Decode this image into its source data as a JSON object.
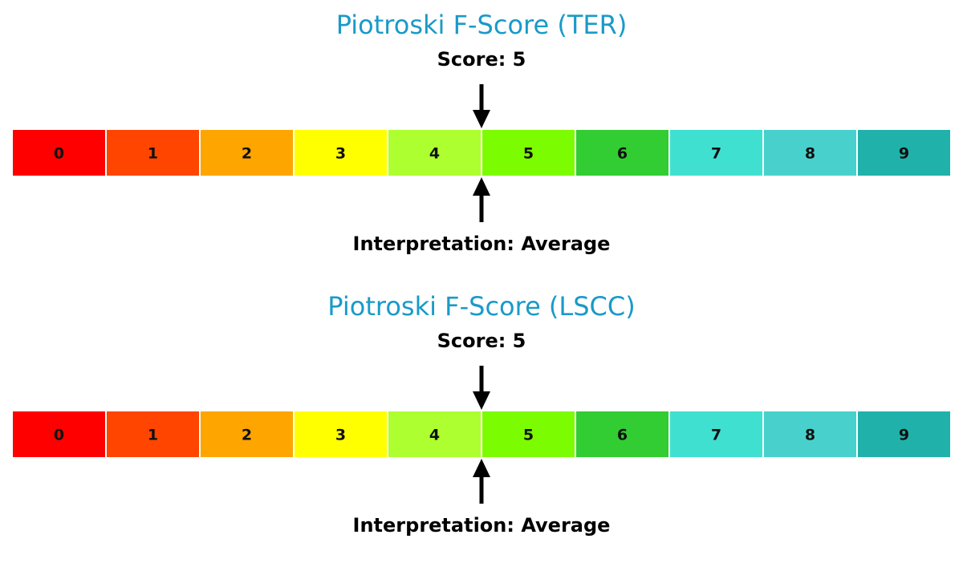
{
  "chart_data": [
    {
      "type": "bar",
      "title": "Piotroski F-Score (TER)",
      "score_label": "Score: 5",
      "interpretation_label": "Interpretation: Average",
      "categories": [
        "0",
        "1",
        "2",
        "3",
        "4",
        "5",
        "6",
        "7",
        "8",
        "9"
      ],
      "score": 5,
      "arrow_position": 5
    },
    {
      "type": "bar",
      "title": "Piotroski F-Score (LSCC)",
      "score_label": "Score: 5",
      "interpretation_label": "Interpretation: Average",
      "categories": [
        "0",
        "1",
        "2",
        "3",
        "4",
        "5",
        "6",
        "7",
        "8",
        "9"
      ],
      "score": 5,
      "arrow_position": 5
    }
  ],
  "colors": {
    "title": "#1a9ac8",
    "arrow": "#000000",
    "cells": [
      "#ff0000",
      "#ff4500",
      "#ffa500",
      "#ffff00",
      "#adff2f",
      "#7cfc00",
      "#32cd32",
      "#40e0d0",
      "#48d1cc",
      "#20b2aa"
    ]
  }
}
